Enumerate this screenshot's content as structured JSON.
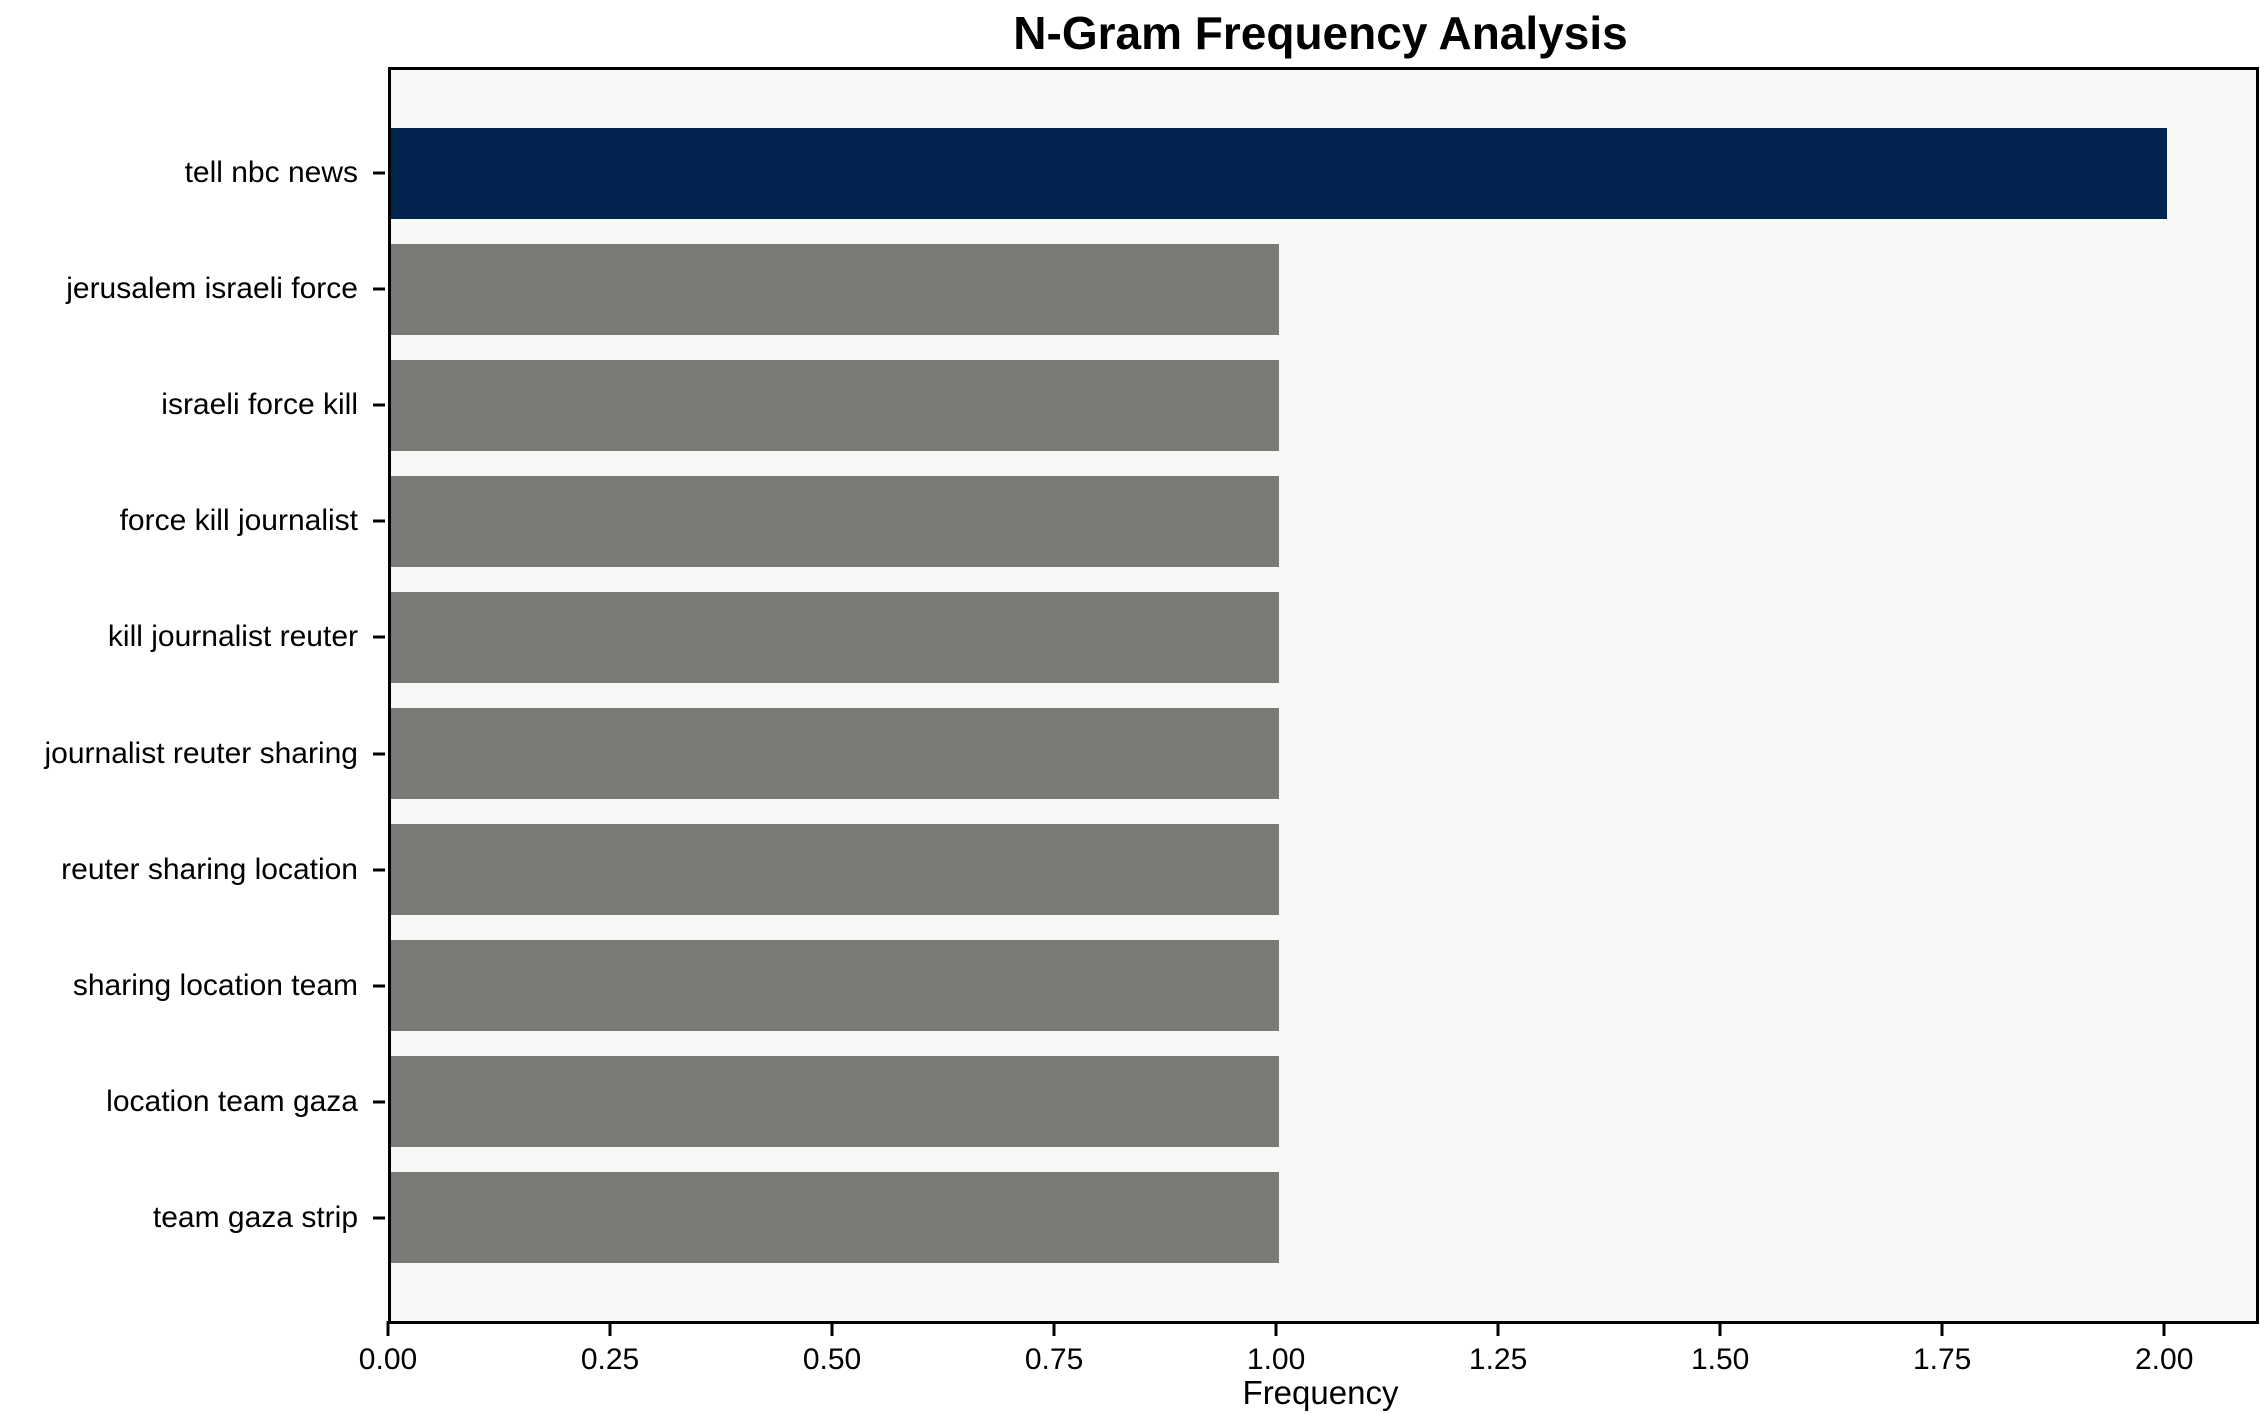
{
  "chart_data": {
    "type": "bar",
    "orientation": "horizontal",
    "title": "N-Gram Frequency Analysis",
    "xlabel": "Frequency",
    "ylabel": "",
    "categories": [
      "tell nbc news",
      "jerusalem israeli force",
      "israeli force kill",
      "force kill journalist",
      "kill journalist reuter",
      "journalist reuter sharing",
      "reuter sharing location",
      "sharing location team",
      "location team gaza",
      "team gaza strip"
    ],
    "values": [
      2,
      1,
      1,
      1,
      1,
      1,
      1,
      1,
      1,
      1
    ],
    "bar_colors": [
      "#02234E",
      "#7B7A77",
      "#7B7A77",
      "#7B7A77",
      "#7B7A77",
      "#7B7A77",
      "#7B7A77",
      "#7B7A77",
      "#7B7A77",
      "#7B7A77"
    ],
    "xlim": [
      0,
      2.1
    ],
    "xticks": [
      0,
      0.25,
      0.5,
      0.75,
      1.0,
      1.25,
      1.5,
      1.75,
      2.0
    ],
    "xtick_labels": [
      "0.00",
      "0.25",
      "0.50",
      "0.75",
      "1.00",
      "1.25",
      "1.50",
      "1.75",
      "2.00"
    ],
    "grid": false,
    "legend": null,
    "colors": {
      "highlight_bar": "#02234E",
      "default_bar": "#7B7A77",
      "plot_background": "#F7F7F6",
      "page_background": "#FFFFFF",
      "spine": "#000000",
      "text": "#000000"
    }
  }
}
